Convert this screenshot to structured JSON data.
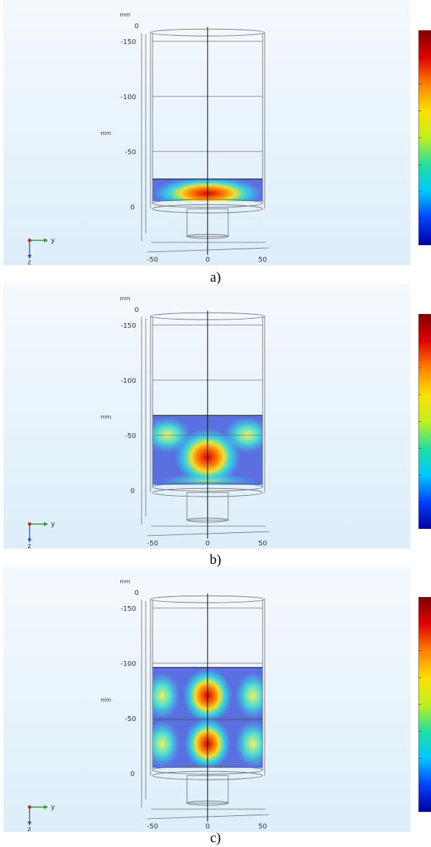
{
  "figure_title": "",
  "axis_triad": {
    "horizontal_label": "y",
    "vertical_label": "z"
  },
  "panels": [
    {
      "caption": "a)",
      "units": {
        "vertical": "mm",
        "horizontal": "mm"
      },
      "vertical_ticks": [
        "0",
        "-150",
        "-100",
        "-50",
        "0"
      ],
      "horizontal_ticks": [
        "-50",
        "0",
        "50"
      ],
      "field": {
        "top_mm": -25,
        "bottom_mm": -5,
        "pattern": "single-low"
      }
    },
    {
      "caption": "b)",
      "units": {
        "vertical": "mm",
        "horizontal": "mm"
      },
      "vertical_ticks": [
        "0",
        "-150",
        "-100",
        "-50",
        "0"
      ],
      "horizontal_ticks": [
        "-50",
        "0",
        "50"
      ],
      "field": {
        "top_mm": -68,
        "bottom_mm": -5,
        "pattern": "three-lobe"
      }
    },
    {
      "caption": "c)",
      "units": {
        "vertical": "mm",
        "horizontal": "mm"
      },
      "vertical_ticks": [
        "0",
        "-150",
        "-100",
        "-50",
        "0"
      ],
      "horizontal_ticks": [
        "-50",
        "0",
        "50"
      ],
      "field": {
        "top_mm": -96,
        "bottom_mm": -5,
        "pattern": "two-row"
      }
    }
  ],
  "colors": {
    "background_top": "#f4f9fd",
    "background_bottom": "#ddeefa",
    "colorbar": [
      "#0000a0",
      "#0040ff",
      "#00c8ff",
      "#20e0a0",
      "#c0f020",
      "#ffe000",
      "#ff8000",
      "#e00000",
      "#800000"
    ]
  }
}
